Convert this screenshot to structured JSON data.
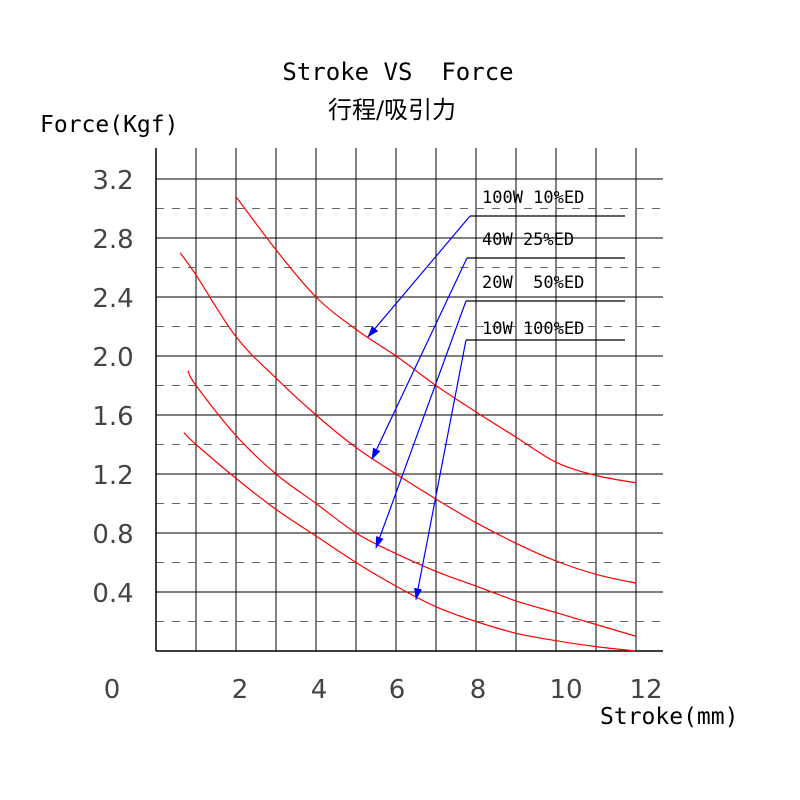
{
  "chart_data": {
    "type": "line",
    "title": "Stroke VS  Force",
    "subtitle": "行程/吸引力",
    "xlabel": "Stroke(mm)",
    "ylabel": "Force(Kgf)",
    "xlim": [
      0,
      12.5
    ],
    "ylim": [
      0,
      3.4
    ],
    "x_ticks": [
      0,
      2,
      4,
      6,
      8,
      10,
      12
    ],
    "x_tick_labels": [
      "0",
      "2",
      "4",
      "6",
      "8",
      "10",
      "12"
    ],
    "y_ticks": [
      0.4,
      0.8,
      1.2,
      1.6,
      2.0,
      2.4,
      2.8,
      3.2
    ],
    "y_tick_labels": [
      "0.4",
      "0.8",
      "1.2",
      "1.6",
      "2.0",
      "2.4",
      "2.8",
      "3.2"
    ],
    "grid": true,
    "series": [
      {
        "name": "100W 10%ED",
        "x": [
          2.0,
          3.0,
          4.0,
          5.0,
          6.0,
          7.0,
          8.0,
          9.0,
          10.0,
          11.0,
          12.0
        ],
        "y": [
          3.08,
          2.72,
          2.4,
          2.18,
          2.0,
          1.8,
          1.62,
          1.45,
          1.28,
          1.19,
          1.14
        ]
      },
      {
        "name": "40W 25%ED",
        "x": [
          0.6,
          1.0,
          2.0,
          3.0,
          4.0,
          5.0,
          6.0,
          7.0,
          8.0,
          9.0,
          10.0,
          11.0,
          12.0
        ],
        "y": [
          2.7,
          2.55,
          2.13,
          1.85,
          1.6,
          1.38,
          1.2,
          1.03,
          0.87,
          0.73,
          0.61,
          0.52,
          0.46
        ]
      },
      {
        "name": "20W  50%ED",
        "x": [
          0.8,
          1.0,
          2.0,
          3.0,
          4.0,
          5.0,
          6.0,
          7.0,
          8.0,
          9.0,
          10.0,
          11.0,
          12.0
        ],
        "y": [
          1.9,
          1.8,
          1.46,
          1.2,
          1.0,
          0.8,
          0.66,
          0.54,
          0.44,
          0.34,
          0.26,
          0.18,
          0.1
        ]
      },
      {
        "name": "10W 100%ED",
        "x": [
          0.7,
          1.0,
          2.0,
          3.0,
          4.0,
          5.0,
          6.0,
          7.0,
          8.0,
          9.0,
          10.0,
          11.0,
          12.0
        ],
        "y": [
          1.48,
          1.4,
          1.17,
          0.96,
          0.78,
          0.6,
          0.44,
          0.3,
          0.2,
          0.12,
          0.07,
          0.03,
          0.0
        ]
      }
    ],
    "annotation_targets": [
      {
        "name": "100W 10%ED",
        "x": 5.3,
        "y": 2.13
      },
      {
        "name": "40W 25%ED",
        "x": 5.4,
        "y": 1.3
      },
      {
        "name": "20W  50%ED",
        "x": 5.5,
        "y": 0.7
      },
      {
        "name": "10W 100%ED",
        "x": 6.5,
        "y": 0.35
      }
    ]
  },
  "colors": {
    "curve": "#ff0000",
    "arrow": "#0000ff",
    "grid": "#000000",
    "dashed_grid": "#666666",
    "text": "#000000",
    "tick_text": "#444444"
  }
}
